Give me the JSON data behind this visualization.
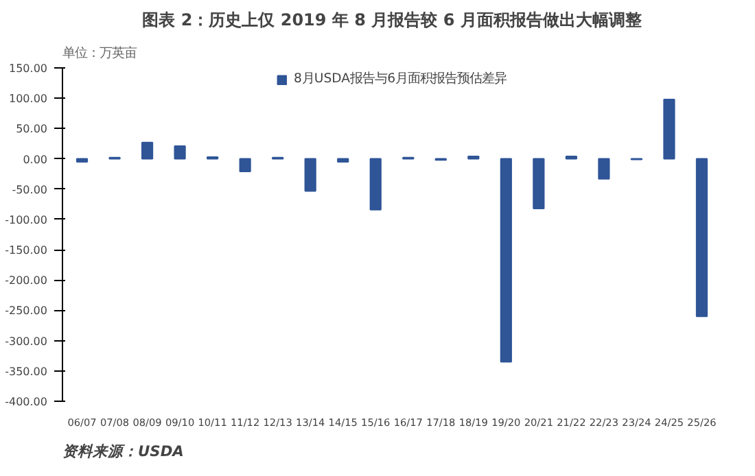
{
  "chart_data": {
    "type": "bar",
    "title": "图表 2：历史上仅 2019 年 8 月报告较 6 月面积报告做出大幅调整",
    "subtitle": "单位：万英亩",
    "categories": [
      "06/07",
      "07/08",
      "08/09",
      "09/10",
      "10/11",
      "11/12",
      "12/13",
      "13/14",
      "14/15",
      "15/16",
      "16/17",
      "17/18",
      "18/19",
      "19/20",
      "20/21",
      "21/22",
      "22/23",
      "23/24",
      "24/25",
      "25/26"
    ],
    "series": [
      {
        "name": "8月USDA报告与6月面积报告预估差异",
        "color": "#2f5597",
        "values": [
          -5,
          2,
          27,
          21,
          3,
          -21,
          2,
          -53,
          -5,
          -84,
          2,
          -2,
          4,
          -335,
          -82,
          4,
          -33,
          -1,
          98,
          -260
        ]
      }
    ],
    "ylim": [
      -400,
      150
    ],
    "yticks": [
      {
        "value": -400,
        "label": "-400.00"
      },
      {
        "value": -350,
        "label": "-350.00"
      },
      {
        "value": -300,
        "label": "-300.00"
      },
      {
        "value": -250,
        "label": "-250.00"
      },
      {
        "value": -200,
        "label": "-200.00"
      },
      {
        "value": -150,
        "label": "-150.00"
      },
      {
        "value": -100,
        "label": "-100.00"
      },
      {
        "value": -50,
        "label": "-50.00"
      },
      {
        "value": 0,
        "label": "0.00"
      },
      {
        "value": 50,
        "label": "50.00"
      },
      {
        "value": 100,
        "label": "100.00"
      },
      {
        "value": 150,
        "label": "150.00"
      }
    ],
    "grid": false,
    "legend": "top",
    "annotations": [
      "资料来源：USDA"
    ]
  }
}
